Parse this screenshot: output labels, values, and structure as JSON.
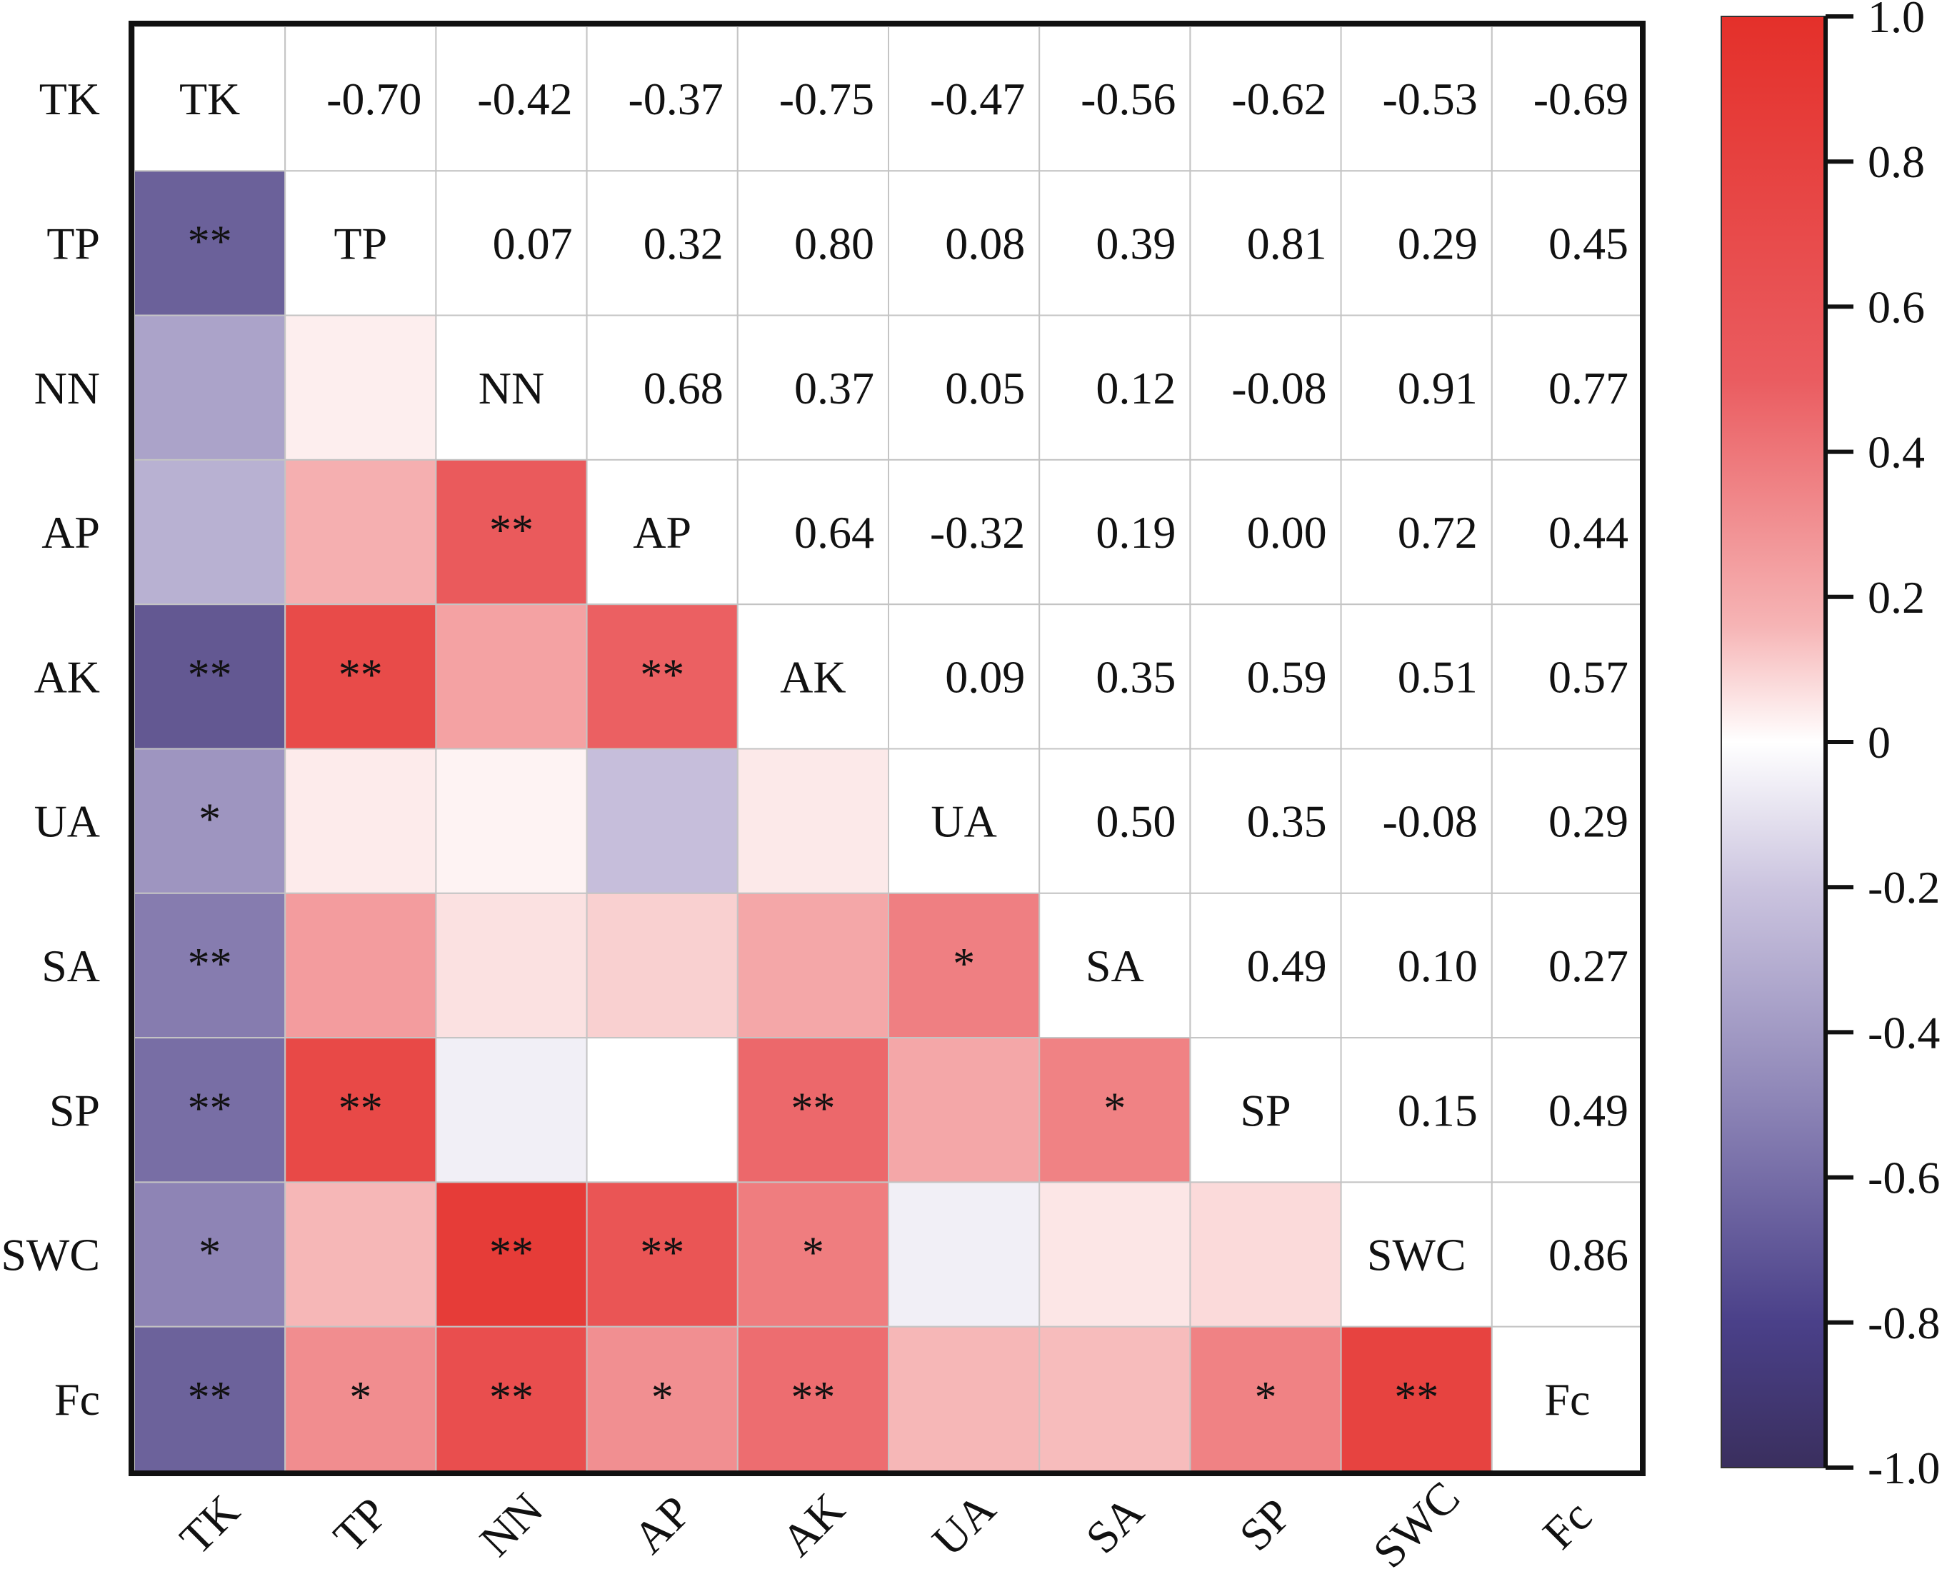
{
  "chart_data": {
    "type": "heatmap",
    "title": "",
    "variables": [
      "TK",
      "TP",
      "NN",
      "AP",
      "AK",
      "UA",
      "SA",
      "SP",
      "SWC",
      "Fc"
    ],
    "matrix": [
      [
        1.0,
        -0.7,
        -0.42,
        -0.37,
        -0.75,
        -0.47,
        -0.56,
        -0.62,
        -0.53,
        -0.69
      ],
      [
        -0.7,
        1.0,
        0.07,
        0.32,
        0.8,
        0.08,
        0.39,
        0.81,
        0.29,
        0.45
      ],
      [
        -0.42,
        0.07,
        1.0,
        0.68,
        0.37,
        0.05,
        0.12,
        -0.08,
        0.91,
        0.77
      ],
      [
        -0.37,
        0.32,
        0.68,
        1.0,
        0.64,
        -0.32,
        0.19,
        0.0,
        0.72,
        0.44
      ],
      [
        -0.75,
        0.8,
        0.37,
        0.64,
        1.0,
        0.09,
        0.35,
        0.59,
        0.51,
        0.57
      ],
      [
        -0.47,
        0.08,
        0.05,
        -0.32,
        0.09,
        1.0,
        0.5,
        0.35,
        -0.08,
        0.29
      ],
      [
        -0.56,
        0.39,
        0.12,
        0.19,
        0.35,
        0.5,
        1.0,
        0.49,
        0.1,
        0.27
      ],
      [
        -0.62,
        0.81,
        -0.08,
        0.0,
        0.59,
        0.35,
        0.49,
        1.0,
        0.15,
        0.49
      ],
      [
        -0.53,
        0.29,
        0.91,
        0.72,
        0.51,
        -0.08,
        0.1,
        0.15,
        1.0,
        0.86
      ],
      [
        -0.69,
        0.45,
        0.77,
        0.44,
        0.57,
        0.29,
        0.27,
        0.49,
        0.86,
        1.0
      ]
    ],
    "significance_lower": [
      [
        "",
        "",
        "",
        "",
        "",
        "",
        "",
        "",
        "",
        ""
      ],
      [
        "**",
        "",
        "",
        "",
        "",
        "",
        "",
        "",
        "",
        ""
      ],
      [
        "",
        "",
        "",
        "",
        "",
        "",
        "",
        "",
        "",
        ""
      ],
      [
        "",
        "",
        "**",
        "",
        "",
        "",
        "",
        "",
        "",
        ""
      ],
      [
        "**",
        "**",
        "",
        "**",
        "",
        "",
        "",
        "",
        "",
        ""
      ],
      [
        "*",
        "",
        "",
        "",
        "",
        "",
        "",
        "",
        "",
        ""
      ],
      [
        "**",
        "",
        "",
        "",
        "",
        "*",
        "",
        "",
        "",
        ""
      ],
      [
        "**",
        "**",
        "",
        "",
        "**",
        "",
        "*",
        "",
        "",
        ""
      ],
      [
        "*",
        "",
        "**",
        "**",
        "*",
        "",
        "",
        "",
        "",
        ""
      ],
      [
        "**",
        "*",
        "**",
        "*",
        "**",
        "",
        "",
        "*",
        "**",
        ""
      ]
    ],
    "upper_triangle": "values",
    "lower_triangle": "colored cells with significance stars",
    "diagonal": "variable names",
    "colorbar": {
      "min": -1.0,
      "max": 1.0,
      "ticks": [
        "1.0",
        "0.8",
        "0.6",
        "0.4",
        "0.2",
        "0",
        "-0.2",
        "-0.4",
        "-0.6",
        "-0.8",
        "-1.0"
      ],
      "tick_values": [
        1.0,
        0.8,
        0.6,
        0.4,
        0.2,
        0,
        -0.2,
        -0.4,
        -0.6,
        -0.8,
        -1.0
      ],
      "colors": {
        "negative": "#3a2f6e",
        "mid_negative": "#8c84b6",
        "zero": "#ffffff",
        "mid_positive": "#f08a8c",
        "positive": "#e4302a"
      },
      "placement": "right"
    },
    "xlabel": "",
    "ylabel": "",
    "x_tick_rotation": "-45"
  }
}
